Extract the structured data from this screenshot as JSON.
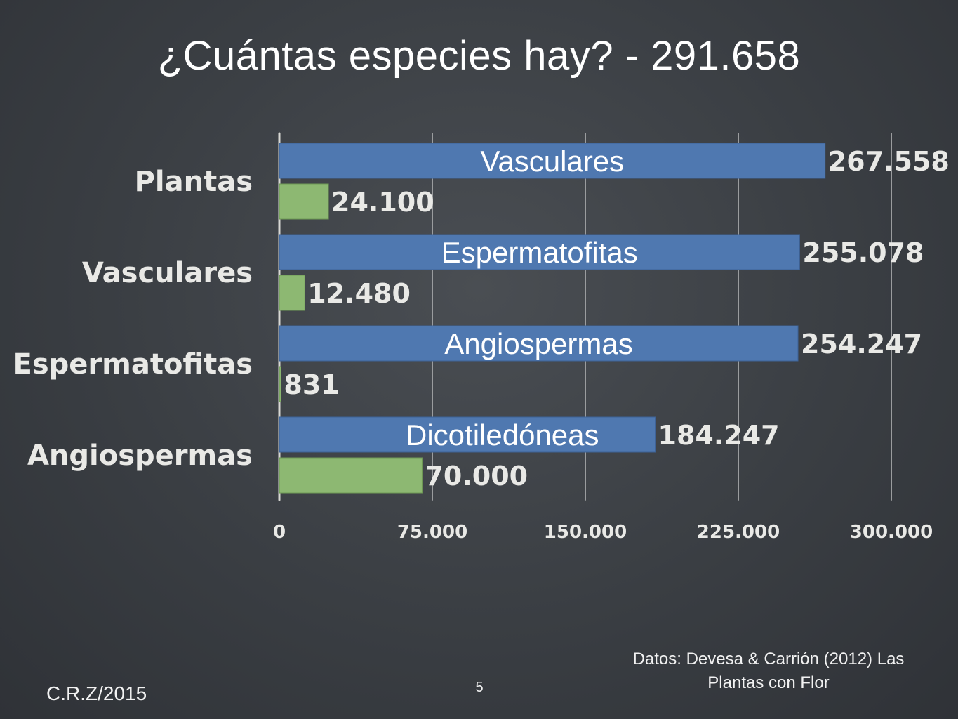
{
  "slide": {
    "title": "¿Cuántas especies hay? - 291.658",
    "source": "Datos: Devesa & Carrión (2012) Las Plantas con Flor",
    "author": "C.R.Z/2015",
    "page_number": "5"
  },
  "colors": {
    "background": "#3a3e43",
    "bar_blue": "#4f78b0",
    "bar_green": "#8db872",
    "chalk": "#e9e9e6"
  },
  "chart_data": {
    "type": "bar",
    "orientation": "horizontal",
    "categories": [
      "Plantas",
      "Vasculares",
      "Espermatofitas",
      "Angiospermas"
    ],
    "series": [
      {
        "color": "#4f78b0",
        "values": [
          267558,
          255078,
          254247,
          184247
        ],
        "value_labels": [
          "267.558",
          "255.078",
          "254.247",
          "184.247"
        ],
        "inner_labels": [
          "Vasculares",
          "Espermatofitas",
          "Angiospermas",
          "Dicotiledóneas"
        ]
      },
      {
        "color": "#8db872",
        "values": [
          24100,
          12480,
          831,
          70000
        ],
        "value_labels": [
          "24.100",
          "12.480",
          "831",
          "70.000"
        ]
      }
    ],
    "xlim": [
      0,
      300000
    ],
    "x_ticks": [
      0,
      75000,
      150000,
      225000,
      300000
    ],
    "x_tick_labels": [
      "0",
      "75.000",
      "150.000",
      "225.000",
      "300.000"
    ],
    "grid": "vertical"
  }
}
